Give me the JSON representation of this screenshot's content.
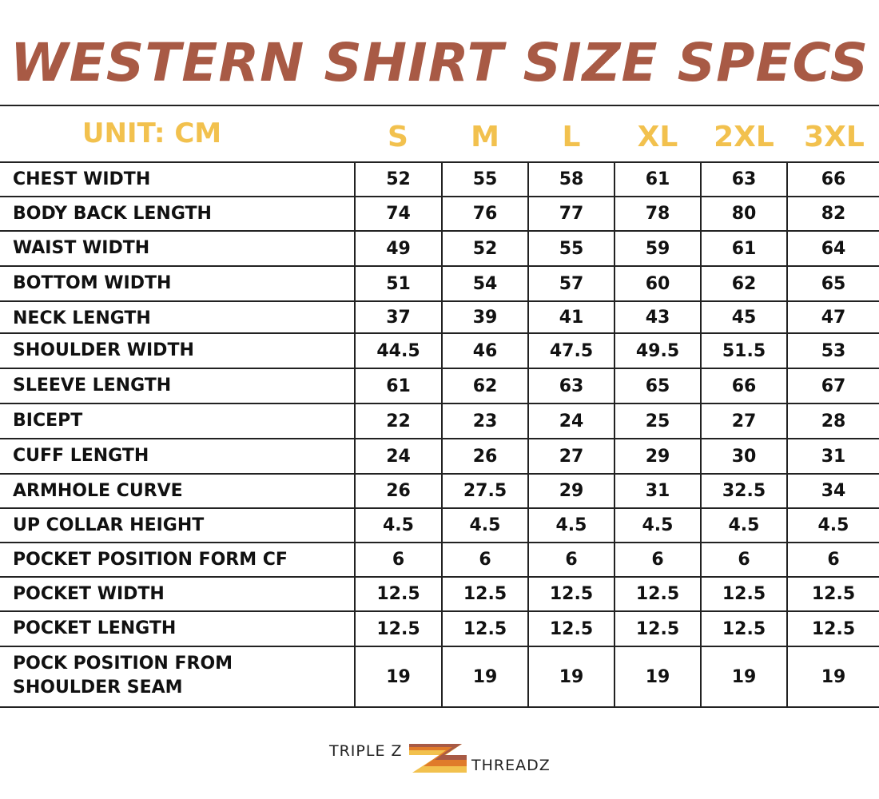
{
  "title": "WESTERN SHIRT SIZE SPECS",
  "unit_label": "UNIT: CM",
  "sizes": [
    "S",
    "M",
    "L",
    "XL",
    "2XL",
    "3XL"
  ],
  "rows": [
    {
      "label": "CHEST WIDTH",
      "values": [
        "52",
        "55",
        "58",
        "61",
        "63",
        "66"
      ]
    },
    {
      "label": "BODY BACK LENGTH",
      "values": [
        "74",
        "76",
        "77",
        "78",
        "80",
        "82"
      ]
    },
    {
      "label": "WAIST WIDTH",
      "values": [
        "49",
        "52",
        "55",
        "59",
        "61",
        "64"
      ]
    },
    {
      "label": "BOTTOM WIDTH",
      "values": [
        "51",
        "54",
        "57",
        "60",
        "62",
        "65"
      ]
    },
    {
      "label": "NECK LENGTH",
      "values": [
        "37",
        "39",
        "41",
        "43",
        "45",
        "47"
      ]
    },
    {
      "label": "SHOULDER WIDTH",
      "values": [
        "44.5",
        "46",
        "47.5",
        "49.5",
        "51.5",
        "53"
      ]
    },
    {
      "label": "SLEEVE LENGTH",
      "values": [
        "61",
        "62",
        "63",
        "65",
        "66",
        "67"
      ]
    },
    {
      "label": "BICEPT",
      "values": [
        "22",
        "23",
        "24",
        "25",
        "27",
        "28"
      ]
    },
    {
      "label": "CUFF LENGTH",
      "values": [
        "24",
        "26",
        "27",
        "29",
        "30",
        "31"
      ]
    },
    {
      "label": "ARMHOLE CURVE",
      "values": [
        "26",
        "27.5",
        "29",
        "31",
        "32.5",
        "34"
      ]
    },
    {
      "label": "UP COLLAR HEIGHT",
      "values": [
        "4.5",
        "4.5",
        "4.5",
        "4.5",
        "4.5",
        "4.5"
      ]
    },
    {
      "label": "POCKET POSITION FORM CF",
      "values": [
        "6",
        "6",
        "6",
        "6",
        "6",
        "6"
      ]
    },
    {
      "label": "POCKET WIDTH",
      "values": [
        "12.5",
        "12.5",
        "12.5",
        "12.5",
        "12.5",
        "12.5"
      ]
    },
    {
      "label": "POCKET LENGTH",
      "values": [
        "12.5",
        "12.5",
        "12.5",
        "12.5",
        "12.5",
        "12.5"
      ]
    },
    {
      "label": "POCK POSITION FROM SHOULDER SEAM",
      "values": [
        "19",
        "19",
        "19",
        "19",
        "19",
        "19"
      ]
    }
  ],
  "brand": {
    "line1": "TRIPLE Z",
    "line2": "THREADZ",
    "colors": [
      "#a85a45",
      "#e07b2a",
      "#f2c14e"
    ]
  },
  "colors": {
    "title": "#a85a45",
    "header": "#f2c14e",
    "text": "#111111",
    "border": "#222222"
  }
}
